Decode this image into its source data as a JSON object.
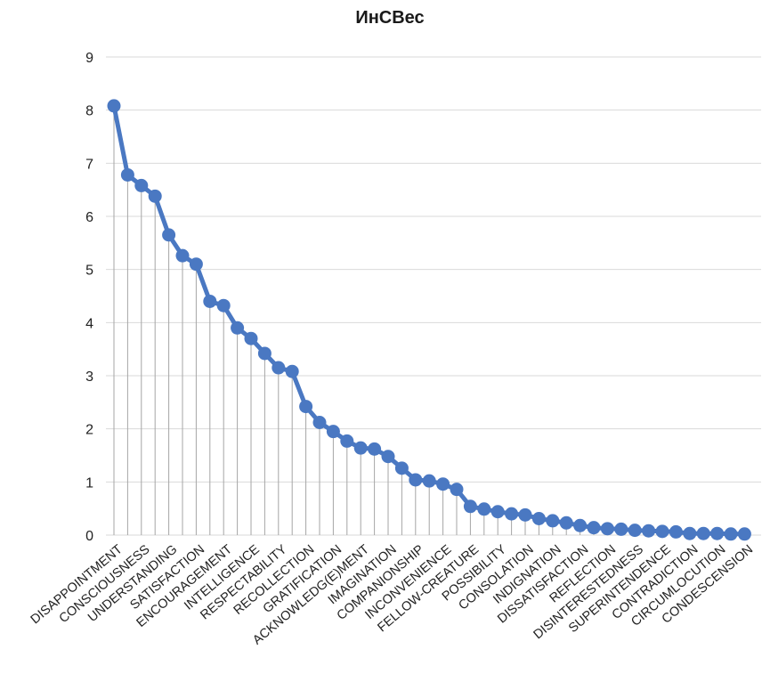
{
  "chart_data": {
    "type": "line",
    "title": "ИнСВес",
    "xlabel": "",
    "ylabel": "",
    "ylim": [
      0,
      9
    ],
    "yticks": [
      0,
      1,
      2,
      3,
      4,
      5,
      6,
      7,
      8,
      9
    ],
    "grid": true,
    "legend": "none",
    "drop_lines": true,
    "colors": {
      "series": "#4a78c2",
      "grid": "#d9d9d9",
      "drop_lines": "#a6a6a6"
    },
    "x": [
      "DISAPPOINTMENT",
      "",
      "CONSCIOUSNESS",
      "",
      "UNDERSTANDING",
      "",
      "SATISFACTION",
      "",
      "ENCOURAGEMENT",
      "",
      "INTELLIGENCE",
      "",
      "RESPECTABILITY",
      "",
      "RECOLLECTION",
      "",
      "GRATIFICATION",
      "",
      "ACKNOWLEDG(E)MENT",
      "",
      "IMAGINATION",
      "",
      "COMPANIONSHIP",
      "",
      "INCONVENIENCE",
      "",
      "FELLOW-CREATURE",
      "",
      "POSSIBILITY",
      "",
      "CONSOLATION",
      "",
      "INDIGNATION",
      "",
      "DISSATISFACTION",
      "",
      "REFLECTION",
      "",
      "DISINTERESTEDNESS",
      "",
      "SUPERINTENDENCE",
      "",
      "CONTRADICTION",
      "",
      "CIRCUMLOCUTION",
      "",
      "CONDESCENSION"
    ],
    "series": [
      {
        "values": [
          8.08,
          6.78,
          6.58,
          6.38,
          5.65,
          5.26,
          5.1,
          4.4,
          4.32,
          3.9,
          3.7,
          3.42,
          3.15,
          3.08,
          2.42,
          2.12,
          1.95,
          1.77,
          1.64,
          1.62,
          1.48,
          1.26,
          1.04,
          1.02,
          0.96,
          0.86,
          0.54,
          0.49,
          0.44,
          0.4,
          0.38,
          0.31,
          0.27,
          0.23,
          0.18,
          0.14,
          0.12,
          0.11,
          0.09,
          0.08,
          0.07,
          0.06,
          0.03,
          0.03,
          0.03,
          0.02,
          0.02
        ]
      }
    ]
  }
}
